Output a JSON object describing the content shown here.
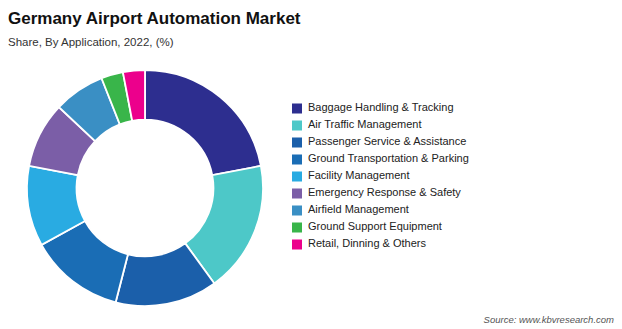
{
  "chart_data": {
    "type": "donut",
    "title": "Germany Airport Automation Market",
    "subtitle": "Share, By Application, 2022, (%)",
    "source": "Source: www.kbvresearch.com",
    "categories": [
      "Baggage Handling & Tracking",
      "Air Traffic Management",
      "Passenger Service & Assistance",
      "Ground Transportation & Parking",
      "Facility Management",
      "Emergency Response & Safety",
      "Airfield Management",
      "Ground Support Equipment",
      "Retail, Dinning & Others"
    ],
    "values": [
      22,
      18,
      14,
      13,
      11,
      9,
      7,
      3,
      3
    ],
    "colors": [
      "#2d2e8f",
      "#4dc8c8",
      "#1b5faa",
      "#1a6db5",
      "#29abe2",
      "#7b5ea7",
      "#3a8fc4",
      "#39b54a",
      "#ec008c"
    ],
    "legend": "right"
  }
}
